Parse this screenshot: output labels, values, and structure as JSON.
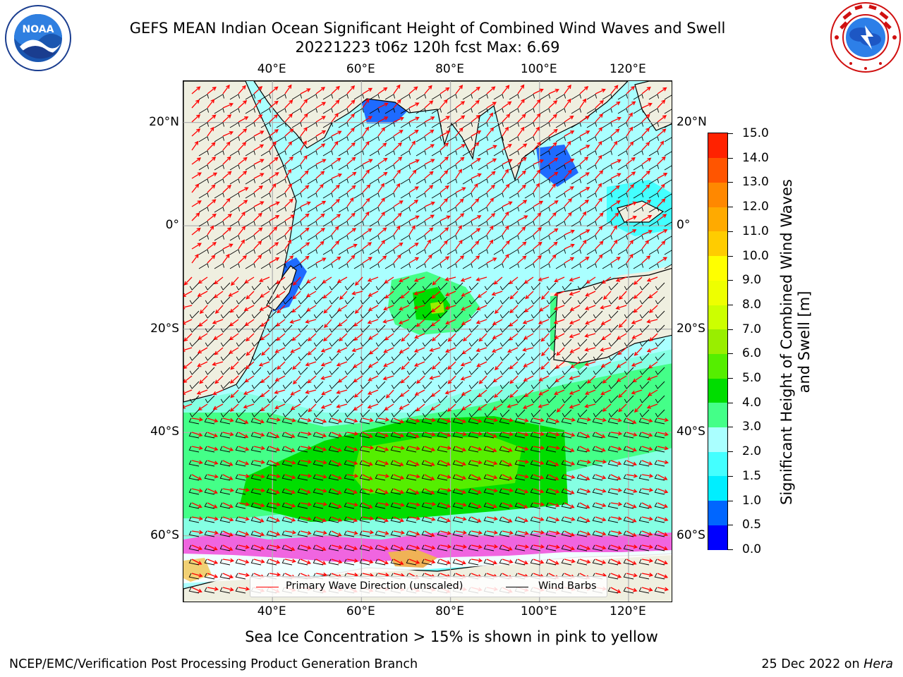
{
  "title": {
    "line1": "GEFS MEAN Indian Ocean Significant Height of Combined Wind Waves and Swell",
    "line2": "20221223 t06z 120h fcst   Max: 6.69"
  },
  "logos": {
    "left": "noaa",
    "right": "national-weather-service"
  },
  "map": {
    "projection": "plate-carree",
    "lon_range_deg": [
      20,
      130
    ],
    "lat_range_deg": [
      -73,
      28
    ],
    "lon_ticks": [
      "40°E",
      "60°E",
      "80°E",
      "100°E",
      "120°E"
    ],
    "lat_ticks": [
      "20°N",
      "0°",
      "20°S",
      "40°S",
      "60°S"
    ],
    "lon_tick_values": [
      40,
      60,
      80,
      100,
      120
    ],
    "lat_tick_values": [
      20,
      0,
      -20,
      -40,
      -60
    ],
    "gridlines": true,
    "land_color": "#efefe0"
  },
  "legend": {
    "primary_wave_direction": "Primary Wave Direction (unscaled)",
    "wind_barbs": "Wind Barbs",
    "wave_color": "#ff0000",
    "barb_color": "#000000"
  },
  "colorbar": {
    "title": "Significant Height of Combined Wind Waves and Swell [m]",
    "levels": [
      "0.0",
      "0.5",
      "1.0",
      "1.5",
      "2.0",
      "3.0",
      "4.0",
      "5.0",
      "6.0",
      "7.0",
      "8.0",
      "9.0",
      "10.0",
      "11.0",
      "12.0",
      "13.0",
      "14.0",
      "15.0"
    ],
    "colors": [
      "#0000ff",
      "#0066ff",
      "#00eeff",
      "#44ffff",
      "#aaffff",
      "#44ff88",
      "#00dd00",
      "#55ee00",
      "#99ee00",
      "#ccff00",
      "#eeff00",
      "#ffff00",
      "#ffcc00",
      "#ffaa00",
      "#ff8800",
      "#ff5500",
      "#ff2200"
    ]
  },
  "ice_note": "Sea Ice Concentration > 15% is shown in pink to yellow",
  "footer": {
    "left": "NCEP/EMC/Verification Post Processing Product Generation Branch",
    "right_date": "25 Dec 2022 on",
    "right_host": "Hera"
  }
}
